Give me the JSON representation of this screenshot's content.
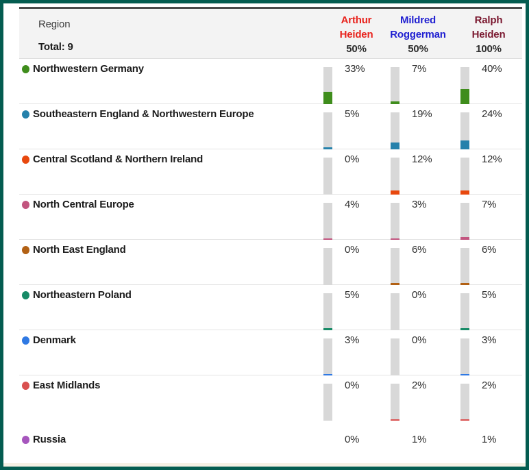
{
  "header": {
    "region_label": "Region",
    "total_label": "Total: 9",
    "persons": [
      {
        "name_line1": "Arthur",
        "name_line2": "Heiden",
        "percent": "50%",
        "color": "#e8231d"
      },
      {
        "name_line1": "Mildred",
        "name_line2": "Roggerman",
        "percent": "50%",
        "color": "#1f1fd1"
      },
      {
        "name_line1": "Ralph",
        "name_line2": "Heiden",
        "percent": "100%",
        "color": "#7a182f"
      }
    ]
  },
  "chart_data": {
    "type": "bar",
    "title": "Ethnicity region comparison",
    "categories": [
      "Northwestern Germany",
      "Southeastern England & Northwestern Europe",
      "Central Scotland & Northern Ireland",
      "North Central Europe",
      "North East England",
      "Northeastern Poland",
      "Denmark",
      "East Midlands",
      "Russia"
    ],
    "series": [
      {
        "name": "Arthur Heiden",
        "values": [
          33,
          5,
          0,
          4,
          0,
          5,
          3,
          0,
          0
        ]
      },
      {
        "name": "Mildred Roggerman",
        "values": [
          7,
          19,
          12,
          3,
          6,
          0,
          0,
          2,
          1
        ]
      },
      {
        "name": "Ralph Heiden",
        "values": [
          40,
          24,
          12,
          7,
          6,
          5,
          3,
          2,
          1
        ]
      }
    ],
    "ylim": [
      0,
      100
    ],
    "legend_position": "top",
    "grid": false
  },
  "rows": [
    {
      "region": "Northwestern Germany",
      "color": "#3f8d1c",
      "values": [
        33,
        7,
        40
      ],
      "labels": [
        "33%",
        "7%",
        "40%"
      ],
      "show_bars": true
    },
    {
      "region": "Southeastern England & Northwestern Europe",
      "color": "#2581ab",
      "values": [
        5,
        19,
        24
      ],
      "labels": [
        "5%",
        "19%",
        "24%"
      ],
      "show_bars": true
    },
    {
      "region": "Central Scotland & Northern Ireland",
      "color": "#e8480e",
      "values": [
        0,
        12,
        12
      ],
      "labels": [
        "0%",
        "12%",
        "12%"
      ],
      "show_bars": true
    },
    {
      "region": "North Central Europe",
      "color": "#c2557f",
      "values": [
        4,
        3,
        7
      ],
      "labels": [
        "4%",
        "3%",
        "7%"
      ],
      "show_bars": true
    },
    {
      "region": "North East England",
      "color": "#b26114",
      "values": [
        0,
        6,
        6
      ],
      "labels": [
        "0%",
        "6%",
        "6%"
      ],
      "show_bars": true
    },
    {
      "region": "Northeastern Poland",
      "color": "#168a66",
      "values": [
        5,
        0,
        5
      ],
      "labels": [
        "5%",
        "0%",
        "5%"
      ],
      "show_bars": true
    },
    {
      "region": "Denmark",
      "color": "#2f79e3",
      "values": [
        3,
        0,
        3
      ],
      "labels": [
        "3%",
        "0%",
        "3%"
      ],
      "show_bars": true
    },
    {
      "region": "East Midlands",
      "color": "#d9504f",
      "values": [
        0,
        2,
        2
      ],
      "labels": [
        "0%",
        "2%",
        "2%"
      ],
      "show_bars": true
    },
    {
      "region": "Russia",
      "color": "#a656bd",
      "values": [
        0,
        1,
        1
      ],
      "labels": [
        "0%",
        "1%",
        "1%"
      ],
      "show_bars": false
    }
  ],
  "style": {
    "frame_border_color": "#045c50",
    "header_bg": "#f3f3f3",
    "bar_track_color": "#d8d8d8",
    "divider_color": "#e4e4e4"
  }
}
